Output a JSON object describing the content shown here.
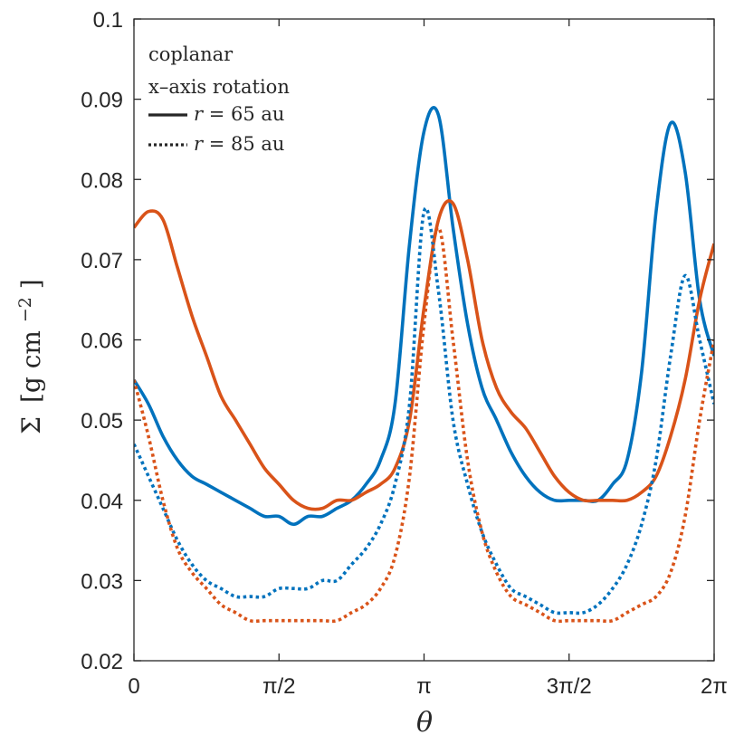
{
  "chart_data": {
    "type": "line",
    "title": "",
    "xlabel": "θ",
    "ylabel": "Σ [g cm⁻²]",
    "ylabel_parts": {
      "sigma": "Σ",
      "bracket_open": "[g cm",
      "exponent": "−2",
      "bracket_close": "]"
    },
    "xlim": [
      0,
      6.2832
    ],
    "ylim": [
      0.02,
      0.1
    ],
    "grid": false,
    "legend_placement": "top-left",
    "legend": {
      "groups": [
        {
          "name": "coplanar",
          "color": "#0072BD"
        },
        {
          "name": "x–axis rotation",
          "color": "#D95319"
        }
      ],
      "styles": [
        {
          "name_prefix": "r",
          "name_suffix": " = 65 au",
          "label": "r = 65 au",
          "linestyle": "solid"
        },
        {
          "name_prefix": "r",
          "name_suffix": " = 85 au",
          "label": "r = 85 au",
          "linestyle": "dotted"
        }
      ]
    },
    "xticks": [
      {
        "value": 0,
        "label": "0"
      },
      {
        "value": 1.5708,
        "label": "π/2"
      },
      {
        "value": 3.1416,
        "label": "π"
      },
      {
        "value": 4.7124,
        "label": "3π/2"
      },
      {
        "value": 6.2832,
        "label": "2π"
      }
    ],
    "yticks": [
      {
        "value": 0.02,
        "label": "0.02"
      },
      {
        "value": 0.03,
        "label": "0.03"
      },
      {
        "value": 0.04,
        "label": "0.04"
      },
      {
        "value": 0.05,
        "label": "0.05"
      },
      {
        "value": 0.06,
        "label": "0.06"
      },
      {
        "value": 0.07,
        "label": "0.07"
      },
      {
        "value": 0.08,
        "label": "0.08"
      },
      {
        "value": 0.09,
        "label": "0.09"
      },
      {
        "value": 0.1,
        "label": "0.1"
      }
    ],
    "series": [
      {
        "name": "coplanar, r = 65 au",
        "color": "#0072BD",
        "linestyle": "solid",
        "x_over_pi": [
          0,
          0.05,
          0.1,
          0.15,
          0.2,
          0.25,
          0.3,
          0.35,
          0.4,
          0.45,
          0.5,
          0.55,
          0.6,
          0.65,
          0.7,
          0.75,
          0.8,
          0.85,
          0.9,
          0.95,
          1.0,
          1.05,
          1.1,
          1.15,
          1.2,
          1.25,
          1.3,
          1.35,
          1.4,
          1.45,
          1.5,
          1.55,
          1.6,
          1.65,
          1.7,
          1.75,
          1.8,
          1.85,
          1.9,
          1.95,
          2.0
        ],
        "values": [
          0.055,
          0.052,
          0.048,
          0.045,
          0.043,
          0.042,
          0.041,
          0.04,
          0.039,
          0.038,
          0.038,
          0.037,
          0.038,
          0.038,
          0.039,
          0.04,
          0.042,
          0.045,
          0.052,
          0.072,
          0.086,
          0.088,
          0.074,
          0.062,
          0.054,
          0.05,
          0.046,
          0.043,
          0.041,
          0.04,
          0.04,
          0.04,
          0.04,
          0.042,
          0.045,
          0.056,
          0.076,
          0.087,
          0.081,
          0.065,
          0.058
        ]
      },
      {
        "name": "x–axis rotation, r = 65 au",
        "color": "#D95319",
        "linestyle": "solid",
        "x_over_pi": [
          0,
          0.05,
          0.1,
          0.15,
          0.2,
          0.25,
          0.3,
          0.35,
          0.4,
          0.45,
          0.5,
          0.55,
          0.6,
          0.65,
          0.7,
          0.75,
          0.8,
          0.85,
          0.9,
          0.95,
          1.0,
          1.05,
          1.1,
          1.15,
          1.2,
          1.25,
          1.3,
          1.35,
          1.4,
          1.45,
          1.5,
          1.55,
          1.6,
          1.65,
          1.7,
          1.75,
          1.8,
          1.85,
          1.9,
          1.95,
          2.0
        ],
        "values": [
          0.074,
          0.076,
          0.075,
          0.069,
          0.063,
          0.058,
          0.053,
          0.05,
          0.047,
          0.044,
          0.042,
          0.04,
          0.039,
          0.039,
          0.04,
          0.04,
          0.041,
          0.042,
          0.044,
          0.05,
          0.064,
          0.075,
          0.077,
          0.07,
          0.06,
          0.054,
          0.051,
          0.049,
          0.046,
          0.043,
          0.041,
          0.04,
          0.04,
          0.04,
          0.04,
          0.041,
          0.043,
          0.048,
          0.055,
          0.065,
          0.072
        ]
      },
      {
        "name": "coplanar, r = 85 au",
        "color": "#0072BD",
        "linestyle": "dotted",
        "x_over_pi": [
          0,
          0.05,
          0.1,
          0.15,
          0.2,
          0.25,
          0.3,
          0.35,
          0.4,
          0.45,
          0.5,
          0.55,
          0.6,
          0.65,
          0.7,
          0.75,
          0.8,
          0.85,
          0.9,
          0.95,
          1.0,
          1.05,
          1.1,
          1.15,
          1.2,
          1.25,
          1.3,
          1.35,
          1.4,
          1.45,
          1.5,
          1.55,
          1.6,
          1.65,
          1.7,
          1.75,
          1.8,
          1.85,
          1.9,
          1.95,
          2.0
        ],
        "values": [
          0.047,
          0.043,
          0.039,
          0.035,
          0.032,
          0.03,
          0.029,
          0.028,
          0.028,
          0.028,
          0.029,
          0.029,
          0.029,
          0.03,
          0.03,
          0.032,
          0.034,
          0.037,
          0.042,
          0.052,
          0.076,
          0.066,
          0.05,
          0.042,
          0.036,
          0.032,
          0.029,
          0.028,
          0.027,
          0.026,
          0.026,
          0.026,
          0.027,
          0.029,
          0.032,
          0.037,
          0.045,
          0.058,
          0.068,
          0.06,
          0.052
        ]
      },
      {
        "name": "x–axis rotation, r = 85 au",
        "color": "#D95319",
        "linestyle": "dotted",
        "x_over_pi": [
          0,
          0.05,
          0.1,
          0.15,
          0.2,
          0.25,
          0.3,
          0.35,
          0.4,
          0.45,
          0.5,
          0.55,
          0.6,
          0.65,
          0.7,
          0.75,
          0.8,
          0.85,
          0.9,
          0.95,
          1.0,
          1.05,
          1.1,
          1.15,
          1.2,
          1.25,
          1.3,
          1.35,
          1.4,
          1.45,
          1.5,
          1.55,
          1.6,
          1.65,
          1.7,
          1.75,
          1.8,
          1.85,
          1.9,
          1.95,
          2.0
        ],
        "values": [
          0.055,
          0.048,
          0.04,
          0.034,
          0.031,
          0.029,
          0.027,
          0.026,
          0.025,
          0.025,
          0.025,
          0.025,
          0.025,
          0.025,
          0.025,
          0.026,
          0.027,
          0.029,
          0.033,
          0.043,
          0.062,
          0.074,
          0.06,
          0.045,
          0.036,
          0.031,
          0.028,
          0.027,
          0.026,
          0.025,
          0.025,
          0.025,
          0.025,
          0.025,
          0.026,
          0.027,
          0.028,
          0.031,
          0.038,
          0.05,
          0.06
        ]
      }
    ]
  }
}
